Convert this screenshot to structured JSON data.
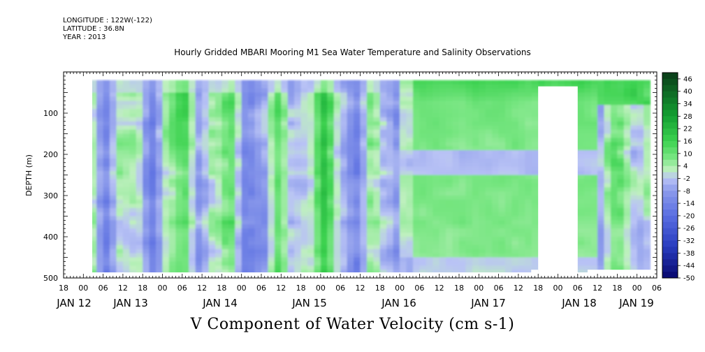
{
  "header": {
    "longitude": "LONGITUDE : 122W(-122)",
    "latitude": "LATITUDE : 36.8N",
    "year": "YEAR : 2013"
  },
  "title": "Hourly Gridded MBARI Mooring M1 Sea Water Temperature and Salinity Observations",
  "bottom_label": "V Component of Water Velocity (cm s-1)",
  "colors": {
    "negative_strong": "#0b0b80",
    "negative_mid": "#5c72e0",
    "negative_light": "#b8c0f5",
    "positive_light": "#b5f0b0",
    "positive_mid": "#3ed960",
    "positive_strong": "#0b4a1a",
    "missing": "#ffffff"
  },
  "chart_data": {
    "type": "heatmap",
    "title": "Hourly Gridded MBARI Mooring M1 Sea Water Temperature and Salinity Observations",
    "xlabel": "",
    "ylabel": "DEPTH (m)",
    "y_axis_inverted": true,
    "ylim": [
      500,
      0
    ],
    "y_ticks": [
      100,
      200,
      300,
      400,
      500
    ],
    "x_hour_ticks": [
      "18",
      "00",
      "06",
      "12",
      "18",
      "00",
      "06",
      "12",
      "18",
      "00",
      "06",
      "12",
      "18",
      "00",
      "06",
      "12",
      "18",
      "00",
      "06",
      "12",
      "18",
      "00",
      "06",
      "12",
      "18",
      "00",
      "06",
      "12",
      "18",
      "00",
      "06"
    ],
    "x_date_labels": [
      "JAN 12",
      "JAN 13",
      "JAN 14",
      "JAN 15",
      "JAN 16",
      "JAN 17",
      "JAN 18",
      "JAN 19"
    ],
    "x_range": [
      "2013-01-11 18:00",
      "2013-01-19 06:00"
    ],
    "data_range": [
      "2013-01-12 00:00",
      "2013-01-19 04:00"
    ],
    "depth_range_data": [
      20,
      490
    ],
    "z_label": "V Component of Water Velocity (cm s-1)",
    "colorbar_labels": [
      "46",
      "40",
      "34",
      "28",
      "22",
      "16",
      "10",
      "4",
      "-2",
      "-8",
      "-14",
      "-20",
      "-26",
      "-32",
      "-38",
      "-44",
      "-50"
    ],
    "colorbar_range": [
      -50,
      49
    ],
    "regions": [
      {
        "period": [
          "2013-01-12 00:00",
          "2013-01-16 00:00"
        ],
        "pattern": "alternating vertical bands of negative (-2 to -20) and positive (2 to 22) values"
      },
      {
        "period": [
          "2013-01-16 00:00",
          "2013-01-17 18:00"
        ],
        "pattern": "mostly positive (4 to 16), strongest near surface; weakly negative layers near 190-240 m and 460-480 m"
      },
      {
        "period": [
          "2013-01-17 18:00",
          "2013-01-18 06:00"
        ],
        "pattern": "missing data (white gap) below ~30 m"
      },
      {
        "period": [
          "2013-01-18 06:00",
          "2013-01-19 04:00"
        ],
        "pattern": "positive near surface (10 to 28), mixed negative/positive below"
      }
    ],
    "grid": false,
    "legend": "right colorbar"
  }
}
